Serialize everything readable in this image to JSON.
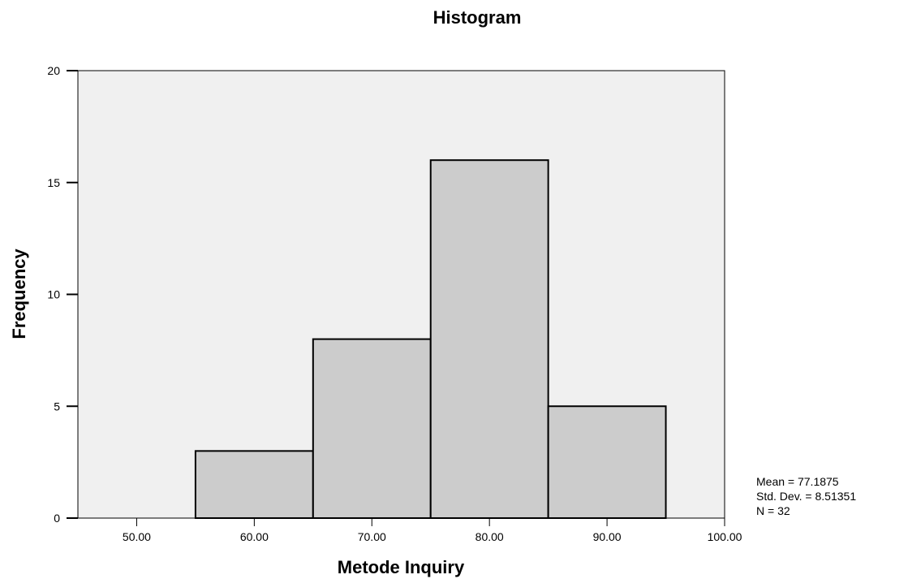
{
  "chart_data": {
    "type": "bar",
    "title": "Histogram",
    "xlabel": "Metode Inquiry",
    "ylabel": "Frequency",
    "bins": [
      {
        "start": 55,
        "end": 65,
        "count": 3
      },
      {
        "start": 65,
        "end": 75,
        "count": 8
      },
      {
        "start": 75,
        "end": 85,
        "count": 16
      },
      {
        "start": 85,
        "end": 95,
        "count": 5
      }
    ],
    "xlim": [
      45,
      100
    ],
    "ylim": [
      0,
      20
    ],
    "x_ticks": [
      {
        "value": 50,
        "label": "50.00"
      },
      {
        "value": 60,
        "label": "60.00"
      },
      {
        "value": 70,
        "label": "70.00"
      },
      {
        "value": 80,
        "label": "80.00"
      },
      {
        "value": 90,
        "label": "90.00"
      },
      {
        "value": 100,
        "label": "100.00"
      }
    ],
    "y_ticks": [
      {
        "value": 0,
        "label": "0"
      },
      {
        "value": 5,
        "label": "5"
      },
      {
        "value": 10,
        "label": "10"
      },
      {
        "value": 15,
        "label": "15"
      },
      {
        "value": 20,
        "label": "20"
      }
    ],
    "grid": false,
    "stats": {
      "mean": "Mean = 77.1875",
      "std_dev": "Std. Dev. = 8.51351",
      "n": "N = 32"
    },
    "colors": {
      "plot_background": "#f0f0f0",
      "bar_fill": "#cccccc",
      "bar_stroke": "#000000"
    }
  }
}
